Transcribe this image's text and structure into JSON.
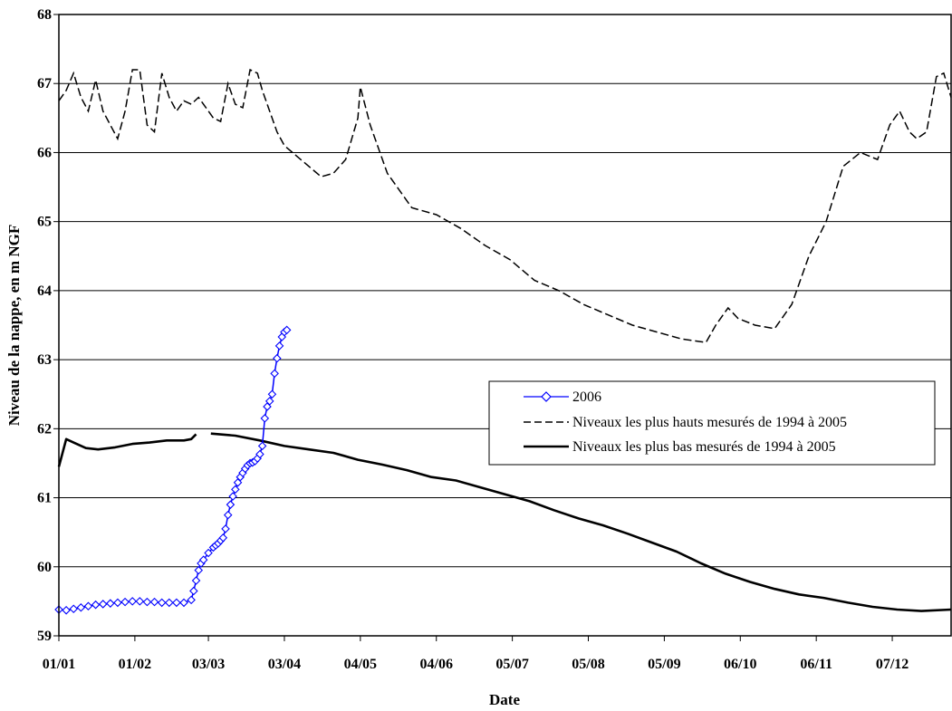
{
  "chart_data": {
    "type": "line",
    "title": "",
    "xlabel": "Date",
    "ylabel": "Niveau de la nappe, en m NGF",
    "ylim": [
      59,
      68
    ],
    "yticks": [
      59,
      60,
      61,
      62,
      63,
      64,
      65,
      66,
      67,
      68
    ],
    "xlim": [
      "01/01",
      "31/12"
    ],
    "xticks": [
      "01/01",
      "01/02",
      "03/03",
      "03/04",
      "04/05",
      "04/06",
      "05/07",
      "05/08",
      "05/09",
      "06/10",
      "06/11",
      "07/12"
    ],
    "grid": {
      "horizontal": true,
      "vertical": false
    },
    "legend_position": "right",
    "series": [
      {
        "name": "2006",
        "color": "#0000ff",
        "style": "line-diamond",
        "x": [
          "01/01",
          "04/01",
          "07/01",
          "10/01",
          "13/01",
          "16/01",
          "19/01",
          "22/01",
          "25/01",
          "28/01",
          "31/01",
          "03/02",
          "06/02",
          "09/02",
          "12/02",
          "15/02",
          "18/02",
          "21/02",
          "24/02",
          "25/02",
          "26/02",
          "27/02",
          "28/02",
          "01/03",
          "03/03",
          "05/03",
          "06/03",
          "07/03",
          "08/03",
          "09/03",
          "10/03",
          "11/03",
          "12/03",
          "13/03",
          "14/03",
          "15/03",
          "16/03",
          "17/03",
          "18/03",
          "19/03",
          "20/03",
          "21/03",
          "22/03",
          "23/03",
          "24/03",
          "25/03",
          "26/03",
          "27/03",
          "28/03",
          "29/03",
          "30/03",
          "31/03",
          "01/04",
          "02/04",
          "03/04",
          "04/04"
        ],
        "y": [
          59.38,
          59.37,
          59.39,
          59.41,
          59.43,
          59.45,
          59.46,
          59.47,
          59.48,
          59.49,
          59.5,
          59.5,
          59.49,
          59.49,
          59.48,
          59.48,
          59.48,
          59.48,
          59.52,
          59.65,
          59.8,
          59.95,
          60.05,
          60.1,
          60.2,
          60.28,
          60.31,
          60.34,
          60.38,
          60.42,
          60.55,
          60.75,
          60.9,
          61.02,
          61.12,
          61.22,
          61.3,
          61.36,
          61.42,
          61.47,
          61.5,
          61.51,
          61.53,
          61.57,
          61.63,
          61.75,
          62.15,
          62.32,
          62.4,
          62.5,
          62.8,
          63.02,
          63.2,
          63.33,
          63.4,
          63.43
        ]
      },
      {
        "name": "Niveaux les plus hauts mesurés de 1994 à 2005",
        "color": "#000000",
        "style": "dashed",
        "x": [
          "01/01",
          "04/01",
          "07/01",
          "10/01",
          "13/01",
          "16/01",
          "19/01",
          "22/01",
          "25/01",
          "28/01",
          "31/01",
          "03/02",
          "06/02",
          "09/02",
          "12/02",
          "15/02",
          "18/02",
          "21/02",
          "24/02",
          "27/02",
          "02/03",
          "05/03",
          "08/03",
          "11/03",
          "14/03",
          "17/03",
          "20/03",
          "23/03",
          "25/03",
          "28/03",
          "31/03",
          "03/04",
          "08/04",
          "13/04",
          "18/04",
          "23/04",
          "28/04",
          "03/05",
          "04/05",
          "08/05",
          "15/05",
          "25/05",
          "04/06",
          "14/06",
          "24/06",
          "04/07",
          "14/07",
          "24/07",
          "03/08",
          "13/08",
          "23/08",
          "02/09",
          "12/09",
          "22/09",
          "26/09",
          "01/10",
          "05/10",
          "12/10",
          "20/10",
          "27/10",
          "03/11",
          "10/11",
          "17/11",
          "24/11",
          "01/12",
          "06/12",
          "10/12",
          "14/12",
          "17/12",
          "21/12",
          "25/12",
          "28/12",
          "31/12"
        ],
        "y": [
          66.75,
          66.9,
          67.15,
          66.8,
          66.6,
          67.05,
          66.6,
          66.4,
          66.2,
          66.6,
          67.2,
          67.2,
          66.4,
          66.3,
          67.15,
          66.8,
          66.6,
          66.75,
          66.7,
          66.8,
          66.65,
          66.5,
          66.45,
          67.0,
          66.7,
          66.65,
          67.2,
          67.15,
          66.9,
          66.6,
          66.3,
          66.1,
          65.95,
          65.8,
          65.65,
          65.7,
          65.9,
          66.5,
          66.95,
          66.4,
          65.7,
          65.2,
          65.1,
          64.9,
          64.65,
          64.45,
          64.15,
          64.0,
          63.8,
          63.65,
          63.5,
          63.4,
          63.3,
          63.25,
          63.5,
          63.75,
          63.6,
          63.5,
          63.45,
          63.8,
          64.5,
          65.0,
          65.8,
          66.0,
          65.9,
          66.4,
          66.6,
          66.3,
          66.2,
          66.3,
          67.1,
          67.15,
          66.8
        ]
      },
      {
        "name": "Niveaux les plus bas mesurés de 1994 à 2005",
        "color": "#000000",
        "style": "solid",
        "segments": [
          {
            "x": [
              "01/01",
              "04/01",
              "07/01",
              "12/01",
              "17/01",
              "24/01",
              "31/01",
              "07/02",
              "14/02",
              "21/02",
              "24/02",
              "26/02"
            ],
            "y": [
              61.45,
              61.85,
              61.8,
              61.72,
              61.7,
              61.73,
              61.78,
              61.8,
              61.83,
              61.83,
              61.85,
              61.92
            ]
          },
          {
            "x": [
              "04/03",
              "14/03",
              "24/03",
              "03/04",
              "13/04",
              "23/04",
              "03/05",
              "13/05",
              "23/05",
              "02/06",
              "12/06",
              "22/06",
              "02/07",
              "12/07",
              "22/07",
              "01/08",
              "11/08",
              "21/08",
              "31/08",
              "10/09",
              "20/09",
              "30/09",
              "10/10",
              "20/10",
              "30/10",
              "09/11",
              "19/11",
              "29/11",
              "09/12",
              "19/12",
              "31/12"
            ],
            "y": [
              61.93,
              61.9,
              61.83,
              61.75,
              61.7,
              61.65,
              61.55,
              61.48,
              61.4,
              61.3,
              61.25,
              61.15,
              61.05,
              60.95,
              60.82,
              60.7,
              60.6,
              60.48,
              60.35,
              60.22,
              60.05,
              59.9,
              59.78,
              59.68,
              59.6,
              59.55,
              59.48,
              59.42,
              59.38,
              59.36,
              59.38
            ]
          }
        ]
      }
    ]
  }
}
